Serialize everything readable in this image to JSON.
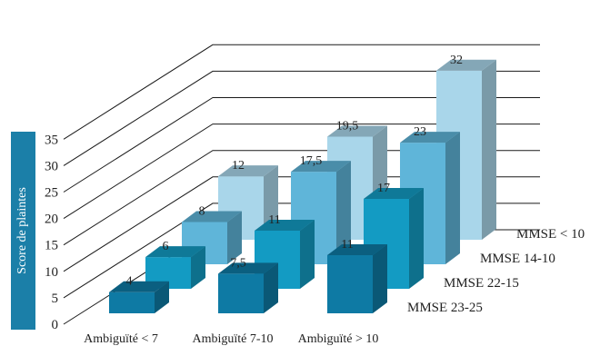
{
  "chart_data": {
    "type": "bar",
    "ylabel": "Score de plaintes",
    "yticks": [
      "0",
      "5",
      "10",
      "15",
      "20",
      "25",
      "30",
      "35"
    ],
    "ylim": [
      0,
      35
    ],
    "categories": [
      "Ambiguïté < 7",
      "Ambiguïté 7-10",
      "Ambiguïté > 10"
    ],
    "series": [
      {
        "name": "MMSE 23-25",
        "values": [
          4,
          7.5,
          11
        ],
        "labels": [
          "4",
          "7,5",
          "11"
        ],
        "color": "#0e7aa4"
      },
      {
        "name": "MMSE 22-15",
        "values": [
          6,
          11,
          17
        ],
        "labels": [
          "6",
          "11",
          "17"
        ],
        "color": "#139bc3"
      },
      {
        "name": "MMSE 14-10",
        "values": [
          8,
          17.5,
          23
        ],
        "labels": [
          "8",
          "17,5",
          "23"
        ],
        "color": "#5fb5d9"
      },
      {
        "name": "MMSE < 10",
        "values": [
          12,
          19.5,
          32
        ],
        "labels": [
          "12",
          "19,5",
          "32"
        ],
        "color": "#a9d6ea"
      }
    ],
    "grid": true,
    "projection": "3d"
  }
}
